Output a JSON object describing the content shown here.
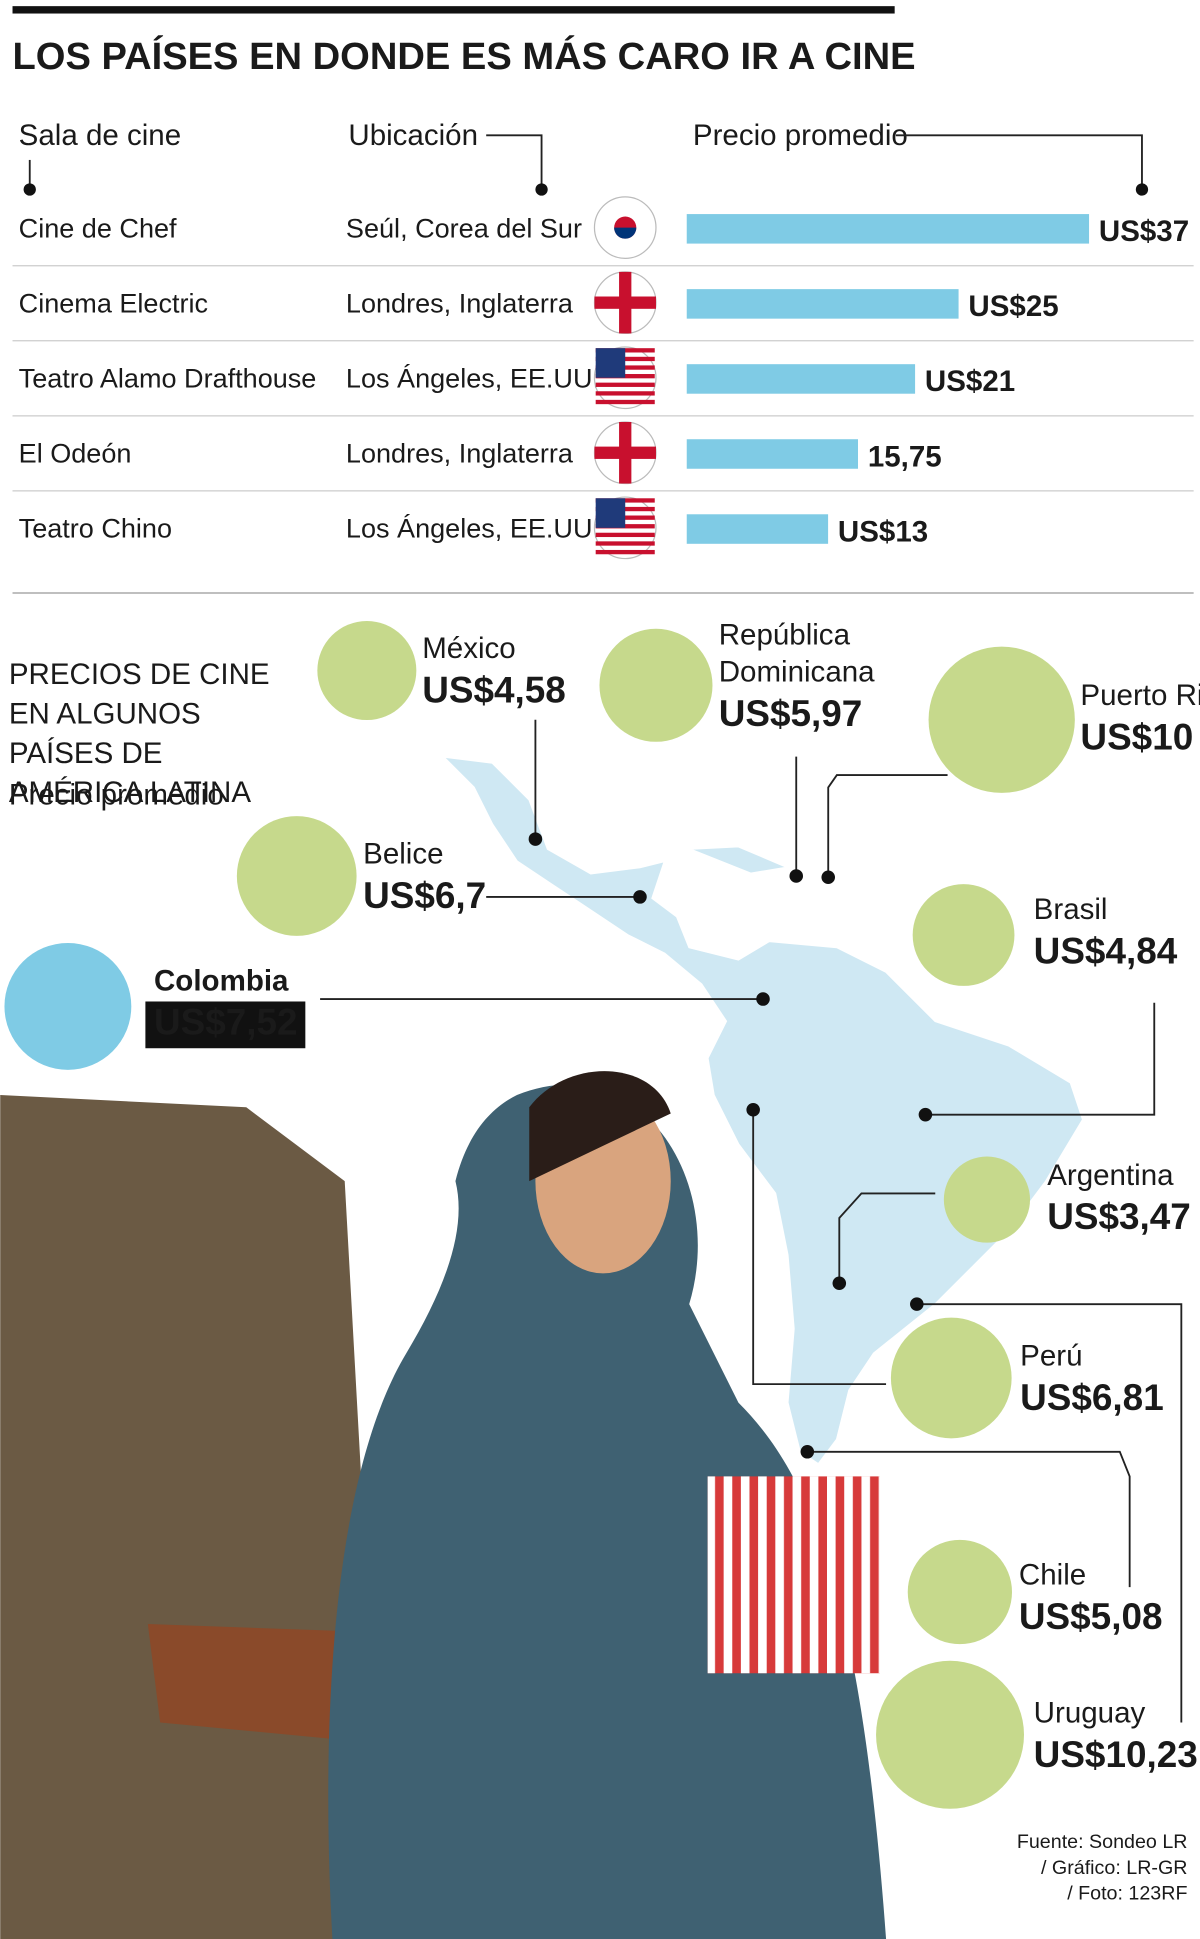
{
  "title": "LOS PAÍSES EN DONDE ES MÁS CARO IR A CINE",
  "chart_data": [
    {
      "type": "bar",
      "columns": [
        "Sala de cine",
        "Ubicación",
        "Precio promedio"
      ],
      "categories": [
        "Cine de Chef",
        "Cinema Electric",
        "Teatro Alamo Drafthouse",
        "El Odeón",
        "Teatro Chino"
      ],
      "locations": [
        "Seúl, Corea del Sur",
        "Londres, Inglaterra",
        "Los Ángeles, EE.UU.",
        "Londres, Inglaterra",
        "Los Ángeles, EE.UU."
      ],
      "values": [
        37,
        25,
        21,
        15.75,
        13
      ],
      "value_labels": [
        "US$37",
        "US$25",
        "US$21",
        "15,75",
        "US$13"
      ],
      "color": "#7fcbe5"
    },
    {
      "type": "bubble",
      "title": "PRECIOS DE CINE EN ALGUNOS PAÍSES DE AMÉRICA LATINA",
      "subtitle": "Precio promedio",
      "categories": [
        "México",
        "República Dominicana",
        "Puerto Rico",
        "Belice",
        "Colombia",
        "Brasil",
        "Argentina",
        "Perú",
        "Chile",
        "Uruguay"
      ],
      "values": [
        4.58,
        5.97,
        10,
        6.7,
        7.52,
        4.84,
        3.47,
        6.81,
        5.08,
        10.23
      ],
      "value_labels": [
        "US$4,58",
        "US$5,97",
        "US$10",
        "US$6,7",
        "US$7,52",
        "US$4,84",
        "US$3,47",
        "US$6,81",
        "US$5,08",
        "US$10,23"
      ],
      "colors": [
        "#c6d98c",
        "#c6d98c",
        "#c6d98c",
        "#c6d98c",
        "#7fcbe5",
        "#c6d98c",
        "#c6d98c",
        "#c6d98c",
        "#c6d98c",
        "#c6d98c"
      ]
    }
  ],
  "source": [
    "Fuente: Sondeo LR",
    "/ Gráfico: LR-GR",
    "/ Foto: 123RF"
  ]
}
